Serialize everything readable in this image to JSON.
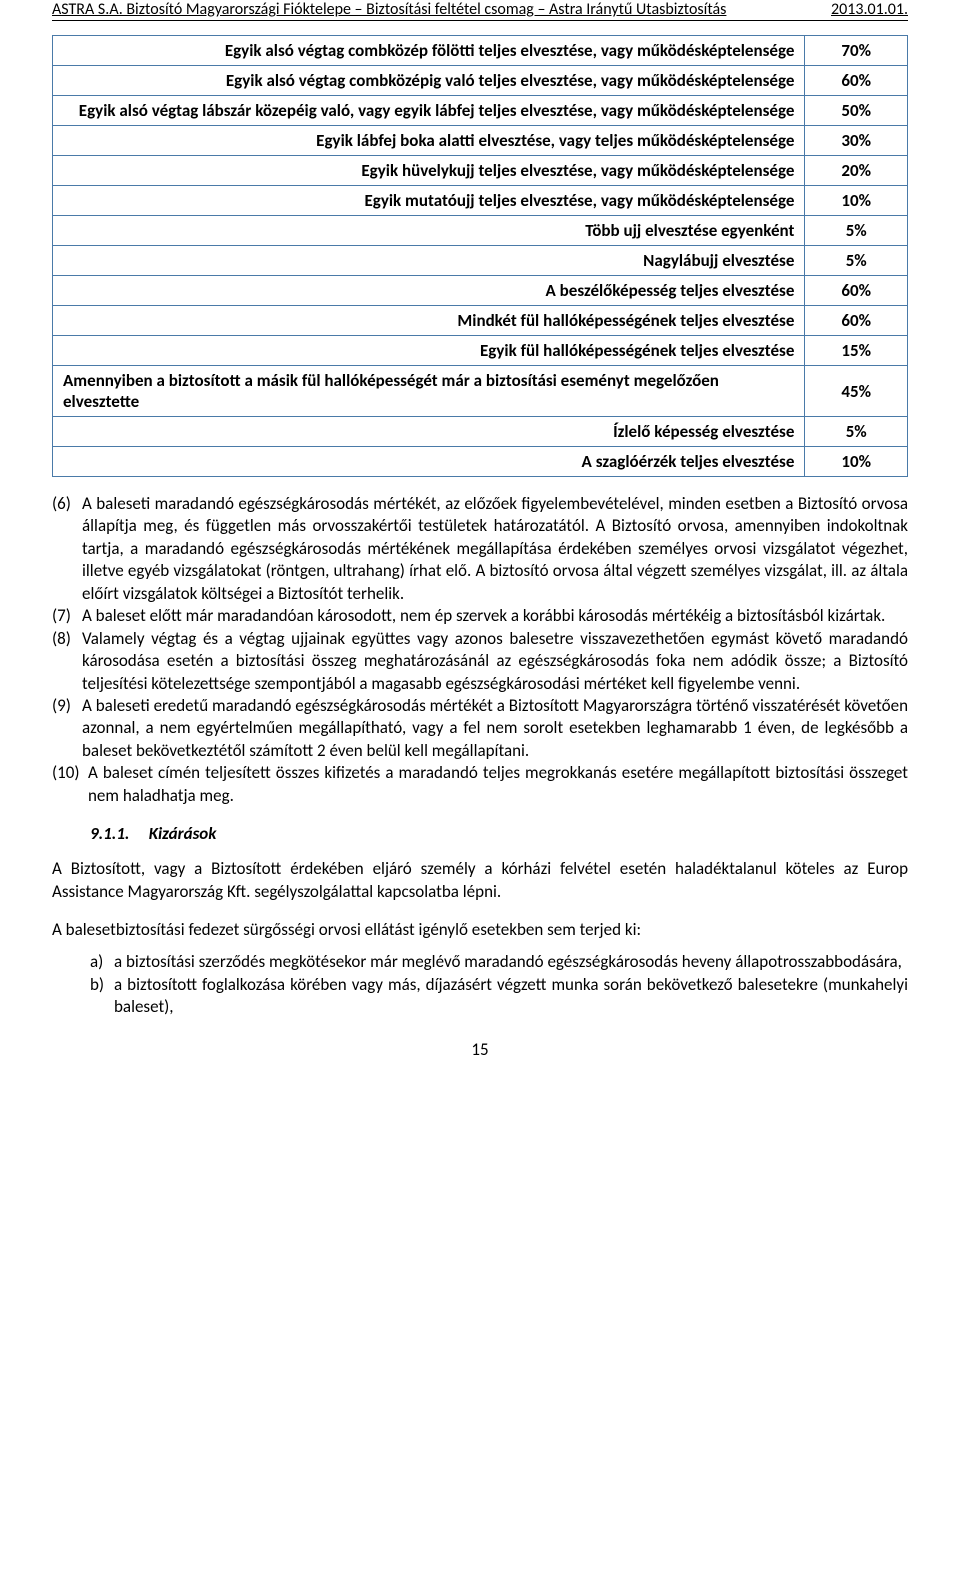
{
  "header": {
    "left": "ASTRA S.A. Biztosító Magyarországi Fióktelepe – Biztosítási feltétel csomag – Astra Iránytű Utasbiztosítás",
    "right": "2013.01.01."
  },
  "table": {
    "border_color": "#4a7aa8",
    "rows": [
      {
        "desc": "Egyik alsó végtag combközép fölötti teljes elvesztése, vagy működésképtelensége",
        "val": "70%"
      },
      {
        "desc": "Egyik alsó végtag combközépig való teljes elvesztése, vagy működésképtelensége",
        "val": "60%"
      },
      {
        "desc": "Egyik alsó végtag lábszár közepéig való, vagy egyik lábfej teljes elvesztése, vagy működésképtelensége",
        "val": "50%"
      },
      {
        "desc": "Egyik lábfej boka alatti elvesztése, vagy teljes működésképtelensége",
        "val": "30%"
      },
      {
        "desc": "Egyik hüvelykujj teljes elvesztése, vagy működésképtelensége",
        "val": "20%"
      },
      {
        "desc": "Egyik mutatóujj teljes elvesztése, vagy működésképtelensége",
        "val": "10%"
      },
      {
        "desc": "Több ujj elvesztése egyenként",
        "val": "5%"
      },
      {
        "desc": "Nagylábujj elvesztése",
        "val": "5%"
      },
      {
        "desc": "A beszélőképesség teljes elvesztése",
        "val": "60%"
      },
      {
        "desc": "Mindkét fül hallóképességének teljes elvesztése",
        "val": "60%"
      },
      {
        "desc": "Egyik fül hallóképességének teljes elvesztése",
        "val": "15%"
      },
      {
        "desc": "Amennyiben a biztosított a másik fül hallóképességét már a biztosítási eseményt megelőzően elvesztette",
        "val": "45%"
      },
      {
        "desc": "Ízlelő képesség elvesztése",
        "val": "5%"
      },
      {
        "desc": "A szaglóérzék teljes elvesztése",
        "val": "10%"
      }
    ]
  },
  "paragraphs": {
    "p6": {
      "num": "(6)",
      "text": "A baleseti maradandó egészségkárosodás mértékét, az előzőek figyelembevételével, minden esetben a Biztosító orvosa állapítja meg, és független más orvosszakértői testületek határozatától. A Biztosító orvosa, amennyiben indokoltnak tartja, a maradandó egészségkárosodás mértékének megállapítása érdekében személyes orvosi vizsgálatot végezhet, illetve egyéb vizsgálatokat (röntgen, ultrahang) írhat elő. A biztosító orvosa által végzett személyes vizsgálat, ill. az általa előírt vizsgálatok költségei a Biztosítót terhelik."
    },
    "p7": {
      "num": "(7)",
      "text": "A baleset előtt már maradandóan károsodott, nem ép szervek a korábbi károsodás mértékéig a biztosításból kizártak."
    },
    "p8": {
      "num": "(8)",
      "text": "Valamely végtag és a végtag ujjainak együttes vagy azonos balesetre visszavezethetően egymást követő maradandó károsodása esetén a biztosítási összeg meghatározásánál az egészségkárosodás foka nem adódik össze; a Biztosító teljesítési kötelezettsége szempontjából a magasabb egészségkárosodási mértéket kell figyelembe venni."
    },
    "p9": {
      "num": "(9)",
      "text": "A baleseti eredetű maradandó egészségkárosodás mértékét a Biztosított Magyarországra történő visszatérését követően azonnal, a nem egyértelműen megállapítható, vagy a fel nem sorolt esetekben leghamarabb 1 éven, de legkésőbb a baleset bekövetkeztétől számított 2 éven belül kell megállapítani."
    },
    "p10": {
      "num": "(10)",
      "text": "A baleset címén teljesített összes kifizetés a maradandó teljes megrokkanás esetére megállapított biztosítási összeget nem haladhatja meg."
    }
  },
  "subsection": {
    "number": "9.1.1.",
    "title": "Kizárások"
  },
  "after": {
    "p1": "A Biztosított, vagy a Biztosított érdekében eljáró személy a kórházi felvétel esetén haladéktalanul köteles az Europ Assistance Magyarország Kft. segélyszolgálattal kapcsolatba lépni.",
    "p2": "A balesetbiztosítási fedezet sürgősségi orvosi ellátást igénylő esetekben sem terjed ki:"
  },
  "sublist": {
    "a": {
      "num": "a)",
      "text": "a biztosítási szerződés megkötésekor már meglévő maradandó egészségkárosodás heveny állapotrosszabbodására,"
    },
    "b": {
      "num": "b)",
      "text": "a biztosított foglalkozása körében vagy más, díjazásért végzett munka során bekövetkező balesetekre (munkahelyi baleset),"
    }
  },
  "page_number": "15"
}
